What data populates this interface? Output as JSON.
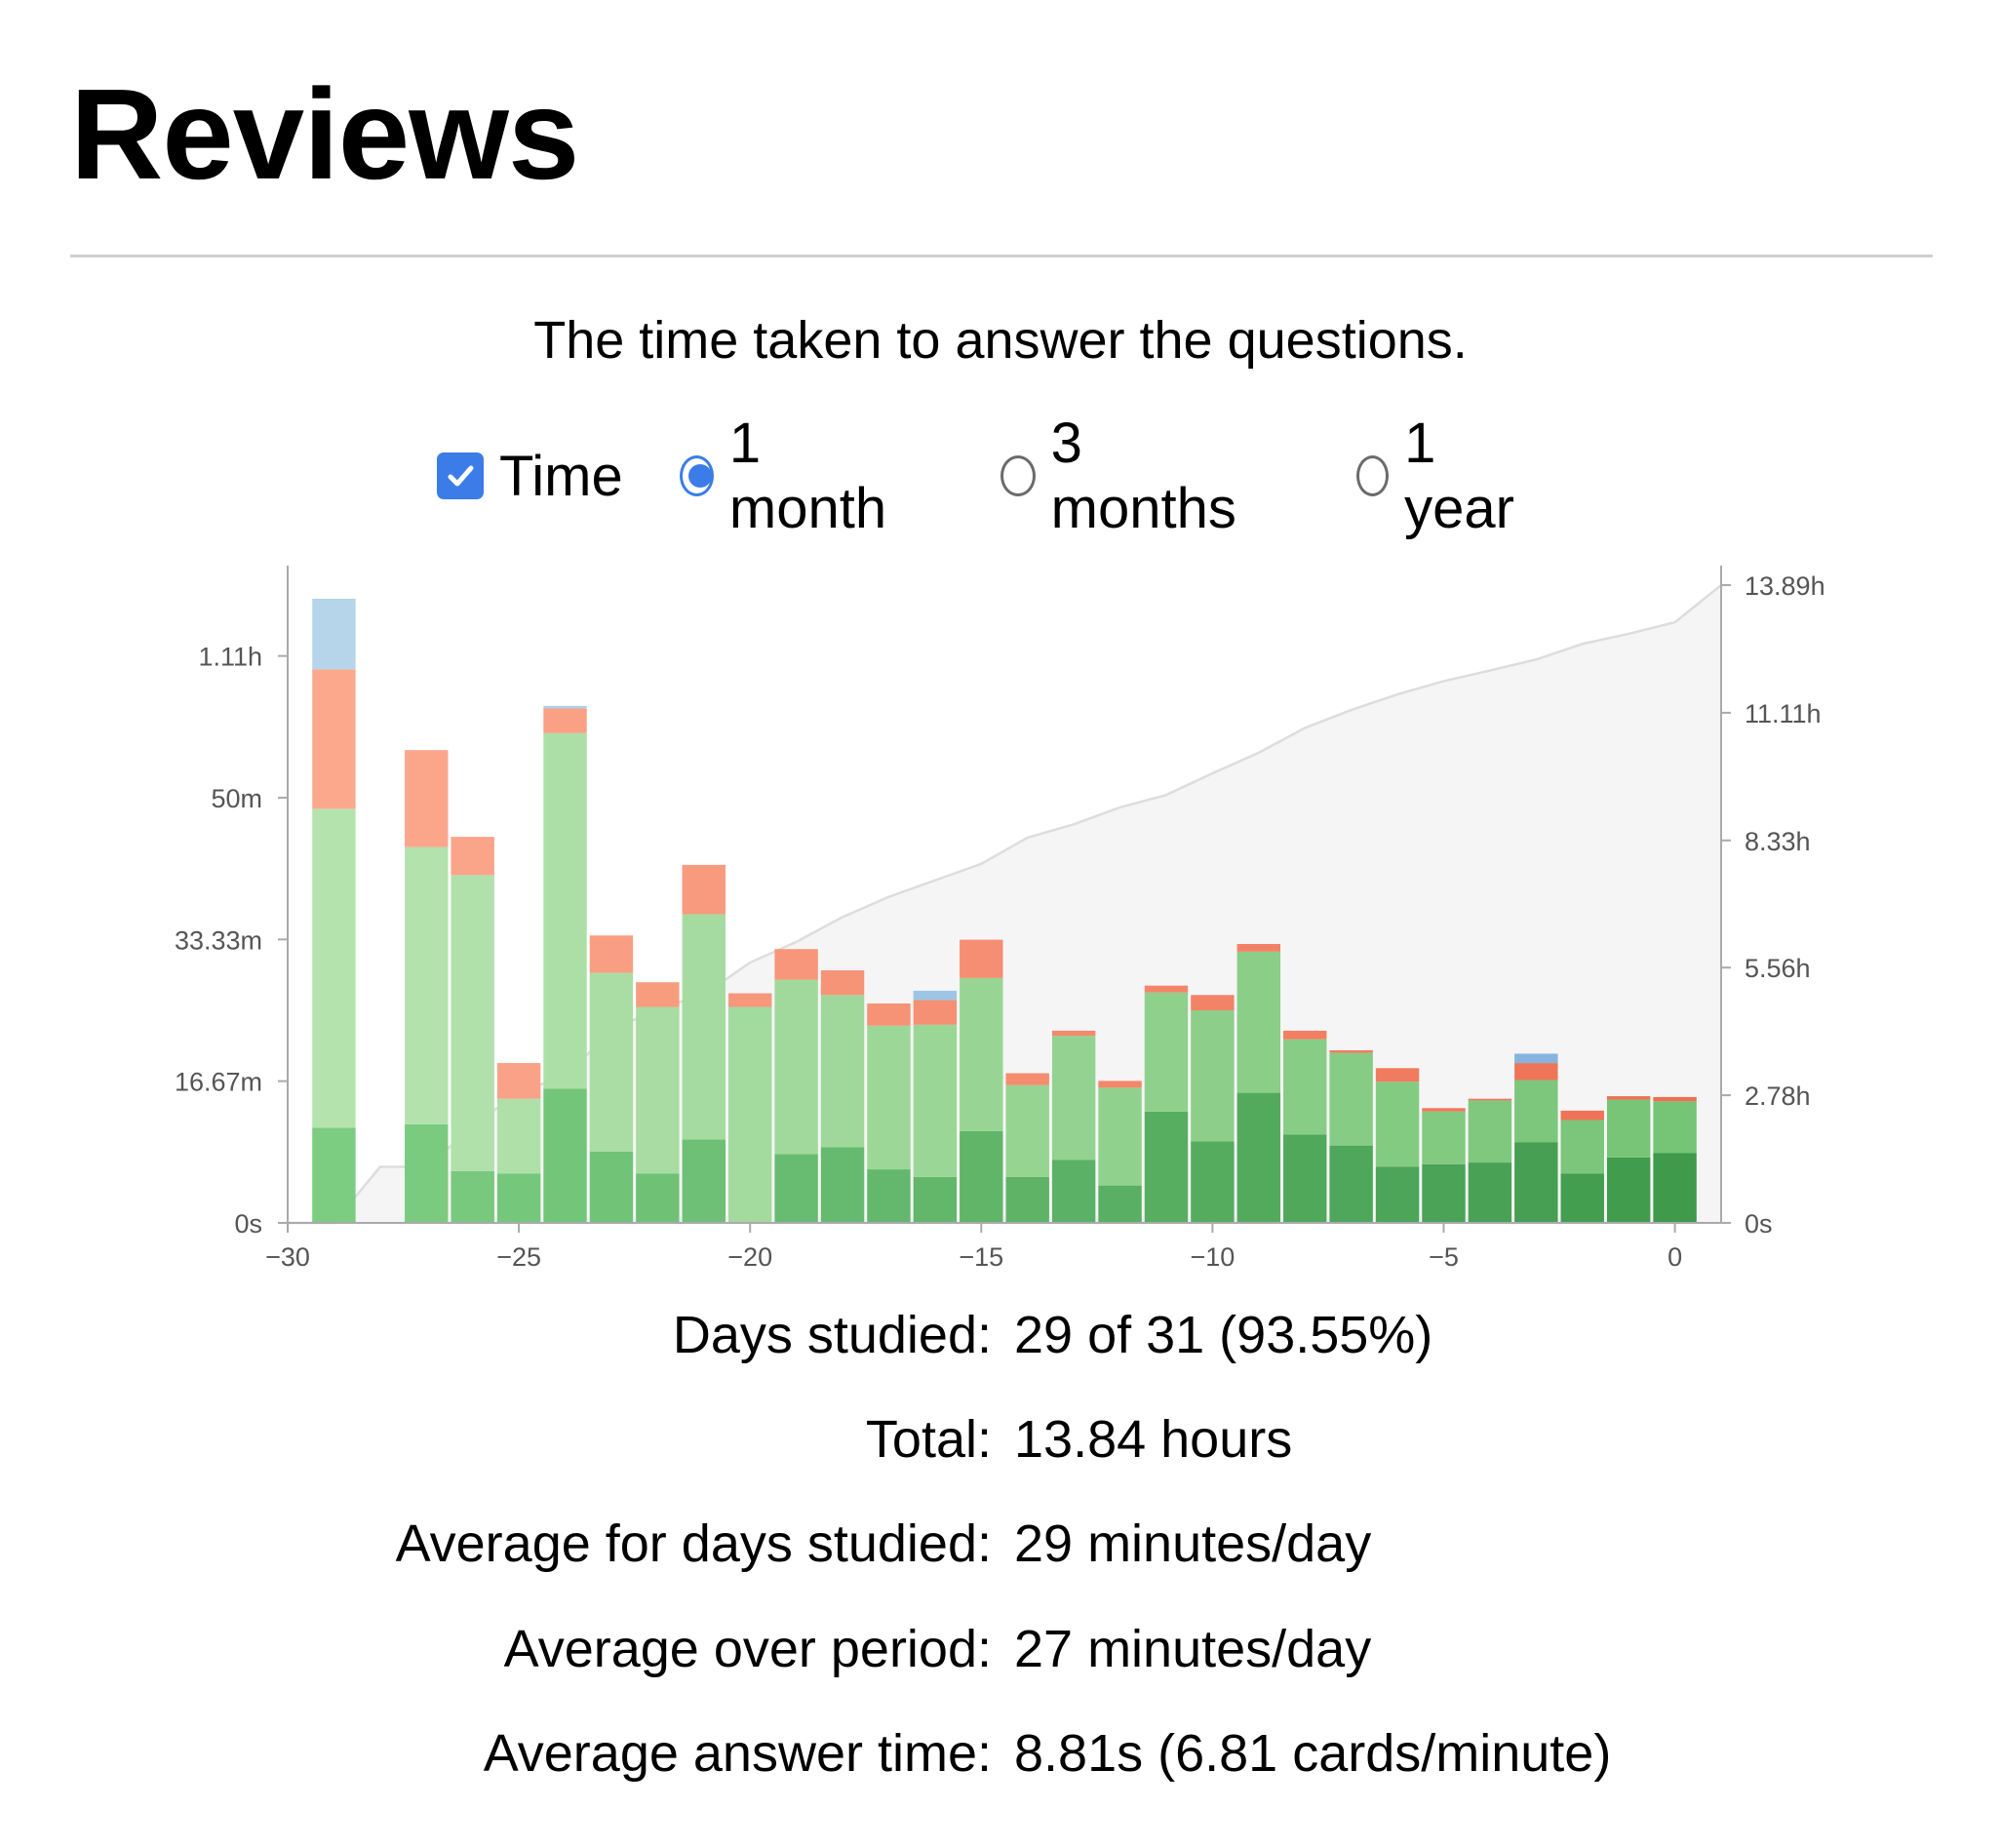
{
  "header": {
    "title": "Reviews"
  },
  "subtitle": "The time taken to answer the questions.",
  "controls": {
    "time_label": "Time",
    "time_checked": true,
    "range_options": [
      {
        "label": "1 month",
        "selected": true
      },
      {
        "label": "3 months",
        "selected": false
      },
      {
        "label": "1 year",
        "selected": false
      }
    ]
  },
  "chart_data": {
    "type": "bar",
    "stacked": true,
    "x_unit": "days relative to today",
    "y_unit": "minutes",
    "left_axis": {
      "ticks": [
        "0s",
        "16.67m",
        "33.33m",
        "50m",
        "1.11h"
      ],
      "tick_values": [
        0,
        16.67,
        33.33,
        50,
        66.67
      ],
      "ylim": [
        0,
        75
      ]
    },
    "right_axis": {
      "ticks": [
        "0s",
        "2.78h",
        "5.56h",
        "8.33h",
        "11.11h",
        "13.89h"
      ],
      "tick_values": [
        0,
        2.78,
        5.56,
        8.33,
        11.11,
        13.89
      ],
      "ylim": [
        0,
        13.89
      ]
    },
    "x_axis": {
      "ticks": [
        "−30",
        "−25",
        "−20",
        "−15",
        "−10",
        "−5",
        "0"
      ],
      "tick_values": [
        -30,
        -25,
        -20,
        -15,
        -10,
        -5,
        0
      ],
      "xlim": [
        -30,
        1
      ]
    },
    "series_colors": {
      "mature": "#4caf5a",
      "young": "#a9dfa3",
      "relearn": "#ff8a66",
      "learn": "#8fbfe0"
    },
    "bars": [
      {
        "day": -29,
        "mature": 11.2,
        "young": 37.5,
        "relearn": 16.4,
        "learn": 8.3
      },
      {
        "day": -27,
        "mature": 11.6,
        "young": 32.6,
        "relearn": 11.4,
        "learn": 0
      },
      {
        "day": -26,
        "mature": 6.1,
        "young": 34.8,
        "relearn": 4.5,
        "learn": 0
      },
      {
        "day": -25,
        "mature": 5.8,
        "young": 8.8,
        "relearn": 4.2,
        "learn": 0
      },
      {
        "day": -24,
        "mature": 15.8,
        "young": 41.8,
        "relearn": 2.9,
        "learn": 0.3
      },
      {
        "day": -23,
        "mature": 8.4,
        "young": 21.0,
        "relearn": 4.4,
        "learn": 0
      },
      {
        "day": -22,
        "mature": 5.8,
        "young": 19.6,
        "relearn": 2.9,
        "learn": 0
      },
      {
        "day": -21,
        "mature": 9.8,
        "young": 26.5,
        "relearn": 5.8,
        "learn": 0
      },
      {
        "day": -20,
        "mature": 0,
        "young": 25.4,
        "relearn": 1.6,
        "learn": 0
      },
      {
        "day": -19,
        "mature": 8.1,
        "young": 20.5,
        "relearn": 3.6,
        "learn": 0
      },
      {
        "day": -18,
        "mature": 8.9,
        "young": 17.9,
        "relearn": 2.9,
        "learn": 0
      },
      {
        "day": -17,
        "mature": 6.3,
        "young": 16.9,
        "relearn": 2.6,
        "learn": 0
      },
      {
        "day": -16,
        "mature": 5.4,
        "young": 17.9,
        "relearn": 2.9,
        "learn": 1.1
      },
      {
        "day": -15,
        "mature": 10.8,
        "young": 18.0,
        "relearn": 4.5,
        "learn": 0
      },
      {
        "day": -14,
        "mature": 5.4,
        "young": 10.8,
        "relearn": 1.4,
        "learn": 0
      },
      {
        "day": -13,
        "mature": 7.4,
        "young": 14.6,
        "relearn": 0.6,
        "learn": 0
      },
      {
        "day": -12,
        "mature": 4.4,
        "young": 11.5,
        "relearn": 0.8,
        "learn": 0
      },
      {
        "day": -11,
        "mature": 13.1,
        "young": 14.0,
        "relearn": 0.8,
        "learn": 0
      },
      {
        "day": -10,
        "mature": 9.6,
        "young": 15.4,
        "relearn": 1.8,
        "learn": 0
      },
      {
        "day": -9,
        "mature": 15.3,
        "young": 16.6,
        "relearn": 0.9,
        "learn": 0
      },
      {
        "day": -8,
        "mature": 10.4,
        "young": 11.2,
        "relearn": 1.0,
        "learn": 0
      },
      {
        "day": -7,
        "mature": 9.1,
        "young": 10.9,
        "relearn": 0.3,
        "learn": 0
      },
      {
        "day": -6,
        "mature": 6.6,
        "young": 10.0,
        "relearn": 1.6,
        "learn": 0
      },
      {
        "day": -5,
        "mature": 6.9,
        "young": 6.2,
        "relearn": 0.4,
        "learn": 0
      },
      {
        "day": -4,
        "mature": 7.1,
        "young": 7.3,
        "relearn": 0.2,
        "learn": 0
      },
      {
        "day": -3,
        "mature": 9.5,
        "young": 7.3,
        "relearn": 2.0,
        "learn": 1.1
      },
      {
        "day": -2,
        "mature": 5.8,
        "young": 6.3,
        "relearn": 1.1,
        "learn": 0
      },
      {
        "day": -1,
        "mature": 7.7,
        "young": 6.8,
        "relearn": 0.4,
        "learn": 0
      },
      {
        "day": 0,
        "mature": 8.2,
        "young": 6.1,
        "relearn": 0.5,
        "learn": 0
      }
    ],
    "cumulative_hours": {
      "x": [
        -30,
        -29,
        -28,
        -27,
        -26,
        -25,
        -24,
        -23,
        -22,
        -21,
        -20,
        -19,
        -18,
        -17,
        -16,
        -15,
        -14,
        -13,
        -12,
        -11,
        -10,
        -9,
        -8,
        -7,
        -6,
        -5,
        -4,
        -3,
        -2,
        -1,
        0,
        1
      ],
      "y": [
        0,
        0,
        1.22,
        1.22,
        2.09,
        2.87,
        3.18,
        4.19,
        4.67,
        4.97,
        5.67,
        6.12,
        6.66,
        7.1,
        7.46,
        7.82,
        8.39,
        8.68,
        9.05,
        9.32,
        9.79,
        10.24,
        10.78,
        11.17,
        11.51,
        11.8,
        12.03,
        12.27,
        12.61,
        12.83,
        13.08,
        13.89
      ]
    },
    "title": "",
    "xlabel": "",
    "ylabel": "",
    "grid": false
  },
  "stats": [
    {
      "label": "Days studied:",
      "value": "29 of 31 (93.55%)"
    },
    {
      "label": "Total:",
      "value": "13.84 hours"
    },
    {
      "label": "Average for days studied:",
      "value": "29 minutes/day"
    },
    {
      "label": "Average over period:",
      "value": "27 minutes/day"
    },
    {
      "label": "Average answer time:",
      "value": "8.81s (6.81 cards/minute)"
    }
  ]
}
